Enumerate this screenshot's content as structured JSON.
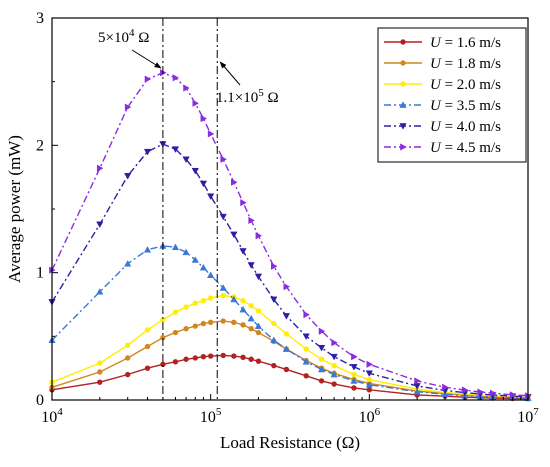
{
  "chart_data": {
    "type": "line",
    "xlabel": "Load Resistance (Ω)",
    "ylabel": "Average power (mW)",
    "x_scale": "log",
    "xlim": [
      10000,
      10000000
    ],
    "ylim": [
      0,
      3
    ],
    "x_ticks": [
      {
        "value": 10000,
        "base": "10",
        "exp": "4"
      },
      {
        "value": 100000,
        "base": "10",
        "exp": "5"
      },
      {
        "value": 1000000,
        "base": "10",
        "exp": "6"
      },
      {
        "value": 10000000,
        "base": "10",
        "exp": "7"
      }
    ],
    "y_ticks": [
      {
        "value": 0,
        "label": "0"
      },
      {
        "value": 1,
        "label": "1"
      },
      {
        "value": 2,
        "label": "2"
      },
      {
        "value": 3,
        "label": "3"
      }
    ],
    "grid": false,
    "legend_position": "top-right",
    "annotations": [
      {
        "x": 50000,
        "mantissa": "5×10",
        "exp": "4",
        "unit": " Ω"
      },
      {
        "x": 110000,
        "mantissa": "1.1×10",
        "exp": "5",
        "unit": " Ω"
      }
    ],
    "x": [
      10000,
      20000,
      30000,
      40000,
      50000,
      60000,
      70000,
      80000,
      90000,
      100000,
      120000,
      140000,
      160000,
      180000,
      200000,
      250000,
      300000,
      400000,
      500000,
      600000,
      800000,
      1000000,
      2000000,
      3000000,
      4000000,
      5000000,
      6000000,
      8000000,
      10000000
    ],
    "series": [
      {
        "name": "U = 1.6 m/s",
        "var": "U",
        "rest": " = 1.6 m/s",
        "color": "#b22222",
        "dash": "",
        "marker": "circle",
        "values": [
          0.08,
          0.14,
          0.2,
          0.25,
          0.28,
          0.3,
          0.32,
          0.33,
          0.34,
          0.345,
          0.35,
          0.345,
          0.335,
          0.32,
          0.305,
          0.27,
          0.24,
          0.19,
          0.15,
          0.125,
          0.095,
          0.08,
          0.04,
          0.03,
          0.022,
          0.018,
          0.015,
          0.012,
          0.01
        ]
      },
      {
        "name": "U = 1.8 m/s",
        "var": "U",
        "rest": " = 1.8 m/s",
        "color": "#d2861e",
        "dash": "",
        "marker": "circle",
        "values": [
          0.1,
          0.22,
          0.33,
          0.42,
          0.49,
          0.53,
          0.56,
          0.58,
          0.6,
          0.61,
          0.62,
          0.61,
          0.59,
          0.56,
          0.53,
          0.46,
          0.4,
          0.31,
          0.25,
          0.21,
          0.16,
          0.13,
          0.07,
          0.05,
          0.038,
          0.03,
          0.025,
          0.02,
          0.016
        ]
      },
      {
        "name": "U = 2.0 m/s",
        "var": "U",
        "rest": " = 2.0 m/s",
        "color": "#ffee00",
        "dash": "",
        "marker": "circle",
        "values": [
          0.14,
          0.29,
          0.43,
          0.55,
          0.63,
          0.69,
          0.73,
          0.76,
          0.78,
          0.8,
          0.82,
          0.81,
          0.78,
          0.74,
          0.7,
          0.6,
          0.52,
          0.4,
          0.32,
          0.27,
          0.2,
          0.16,
          0.085,
          0.06,
          0.046,
          0.037,
          0.031,
          0.024,
          0.02
        ]
      },
      {
        "name": "U = 3.5 m/s",
        "var": "U",
        "rest": " = 3.5 m/s",
        "color": "#3a78d6",
        "dash": "7,3,2,3",
        "marker": "triangle-up",
        "values": [
          0.47,
          0.85,
          1.07,
          1.18,
          1.21,
          1.2,
          1.16,
          1.1,
          1.04,
          0.98,
          0.88,
          0.79,
          0.71,
          0.64,
          0.58,
          0.47,
          0.4,
          0.3,
          0.24,
          0.2,
          0.15,
          0.12,
          0.065,
          0.045,
          0.034,
          0.028,
          0.023,
          0.018,
          0.014
        ]
      },
      {
        "name": "U = 4.0 m/s",
        "var": "U",
        "rest": " = 4.0 m/s",
        "color": "#2b1fa8",
        "dash": "7,3,2,3",
        "marker": "triangle-down",
        "values": [
          0.77,
          1.38,
          1.76,
          1.95,
          2.01,
          1.97,
          1.89,
          1.8,
          1.7,
          1.6,
          1.44,
          1.3,
          1.17,
          1.06,
          0.97,
          0.79,
          0.66,
          0.5,
          0.41,
          0.34,
          0.26,
          0.21,
          0.11,
          0.075,
          0.058,
          0.047,
          0.039,
          0.03,
          0.024
        ]
      },
      {
        "name": "U = 4.5 m/s",
        "var": "U",
        "rest": " = 4.5 m/s",
        "color": "#8a2be2",
        "dash": "7,3,2,3",
        "marker": "triangle-right",
        "values": [
          1.02,
          1.82,
          2.3,
          2.52,
          2.57,
          2.53,
          2.45,
          2.33,
          2.21,
          2.09,
          1.89,
          1.71,
          1.55,
          1.41,
          1.29,
          1.05,
          0.89,
          0.67,
          0.54,
          0.45,
          0.34,
          0.28,
          0.15,
          0.1,
          0.078,
          0.063,
          0.053,
          0.041,
          0.033
        ]
      }
    ]
  }
}
